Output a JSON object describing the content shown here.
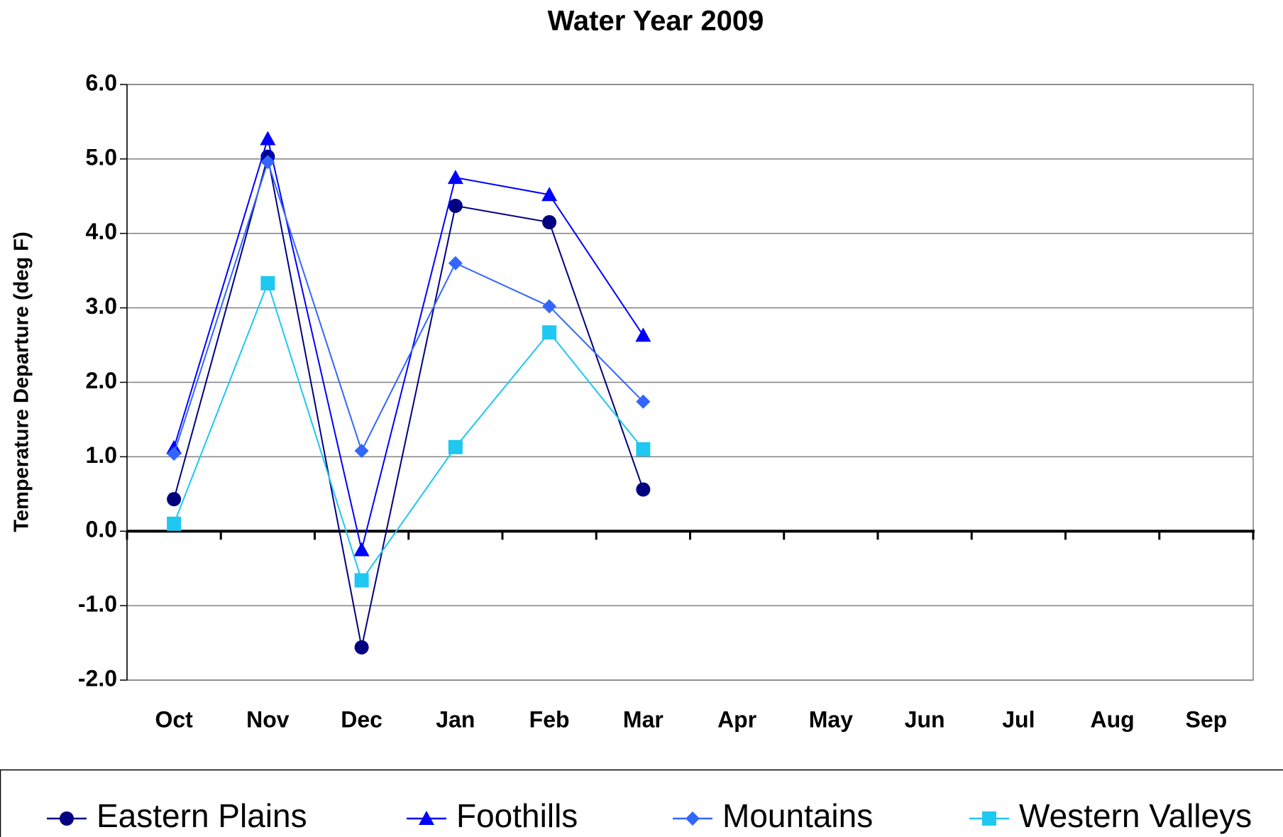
{
  "chart_data": {
    "type": "line",
    "title": "Water Year 2009",
    "y_label": "Temperature Departure (deg F)",
    "categories": [
      "Oct",
      "Nov",
      "Dec",
      "Jan",
      "Feb",
      "Mar",
      "Apr",
      "May",
      "Jun",
      "Jul",
      "Aug",
      "Sep"
    ],
    "series": [
      {
        "name": "Eastern Plains",
        "color": "#000080",
        "marker": "circle",
        "values": [
          0.43,
          5.03,
          -1.56,
          4.37,
          4.15,
          0.56,
          null,
          null,
          null,
          null,
          null,
          null
        ]
      },
      {
        "name": "Foothills",
        "color": "#0000ff",
        "marker": "triangle",
        "values": [
          1.12,
          5.27,
          -0.25,
          4.75,
          4.52,
          2.63,
          null,
          null,
          null,
          null,
          null,
          null
        ]
      },
      {
        "name": "Mountains",
        "color": "#3366ff",
        "marker": "diamond",
        "values": [
          1.04,
          4.96,
          1.08,
          3.6,
          3.02,
          1.74,
          null,
          null,
          null,
          null,
          null,
          null
        ]
      },
      {
        "name": "Western Valleys",
        "color": "#1ec8f0",
        "marker": "square",
        "values": [
          0.1,
          3.33,
          -0.66,
          1.13,
          2.67,
          1.1,
          null,
          null,
          null,
          null,
          null,
          null
        ]
      }
    ],
    "ylim": [
      -2,
      6
    ],
    "yticks": [
      {
        "value": -2,
        "label": "-2.0"
      },
      {
        "value": -1,
        "label": "-1.0"
      },
      {
        "value": 0,
        "label": "0.0"
      },
      {
        "value": 1,
        "label": "1.0"
      },
      {
        "value": 2,
        "label": "2.0"
      },
      {
        "value": 3,
        "label": "3.0"
      },
      {
        "value": 4,
        "label": "4.0"
      },
      {
        "value": 5,
        "label": "5.0"
      },
      {
        "value": 6,
        "label": "6.0"
      }
    ],
    "grid": true,
    "legend": "bottom"
  }
}
